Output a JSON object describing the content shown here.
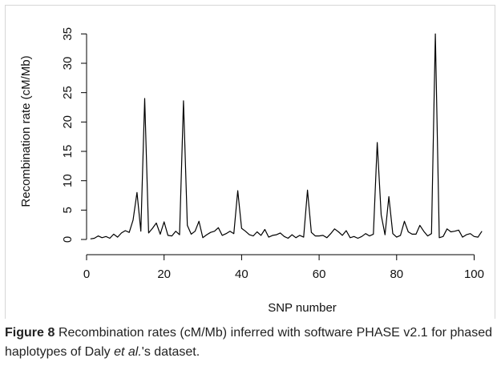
{
  "chart_data": {
    "type": "line",
    "xlabel": "SNP number",
    "ylabel": "Recombination rate (cM/Mb)",
    "xlim": [
      0,
      103
    ],
    "ylim": [
      0,
      36
    ],
    "xticks": [
      0,
      20,
      40,
      60,
      80,
      100
    ],
    "yticks": [
      0,
      5,
      10,
      15,
      20,
      25,
      30,
      35
    ],
    "grid": false,
    "series": [
      {
        "color": "#000000",
        "x": [
          1,
          2,
          3,
          4,
          5,
          6,
          7,
          8,
          9,
          10,
          11,
          12,
          13,
          14,
          15,
          16,
          17,
          18,
          19,
          20,
          21,
          22,
          23,
          24,
          25,
          26,
          27,
          28,
          29,
          30,
          31,
          32,
          33,
          34,
          35,
          36,
          37,
          38,
          39,
          40,
          41,
          42,
          43,
          44,
          45,
          46,
          47,
          48,
          49,
          50,
          51,
          52,
          53,
          54,
          55,
          56,
          57,
          58,
          59,
          60,
          61,
          62,
          63,
          64,
          65,
          66,
          67,
          68,
          69,
          70,
          71,
          72,
          73,
          74,
          75,
          76,
          77,
          78,
          79,
          80,
          81,
          82,
          83,
          84,
          85,
          86,
          87,
          88,
          89,
          90,
          91,
          92,
          93,
          94,
          95,
          96,
          97,
          98,
          99,
          100,
          101,
          102
        ],
        "y": [
          0.1,
          0.2,
          0.6,
          0.3,
          0.5,
          0.2,
          0.9,
          0.4,
          1.1,
          1.5,
          1.2,
          3.3,
          8.0,
          1.4,
          24.0,
          1.1,
          1.9,
          2.8,
          0.9,
          3.0,
          0.7,
          0.6,
          1.4,
          0.8,
          23.6,
          2.4,
          0.9,
          1.4,
          3.1,
          0.3,
          0.8,
          1.2,
          1.4,
          2.0,
          0.7,
          1.0,
          1.4,
          1.0,
          8.3,
          1.9,
          1.4,
          0.8,
          0.6,
          1.3,
          0.7,
          1.7,
          0.4,
          0.7,
          0.8,
          1.1,
          0.5,
          0.2,
          0.8,
          0.3,
          0.7,
          0.4,
          8.4,
          1.2,
          0.6,
          0.6,
          0.7,
          0.3,
          1.0,
          1.8,
          1.3,
          0.7,
          1.5,
          0.3,
          0.5,
          0.2,
          0.5,
          1.0,
          0.6,
          0.9,
          16.5,
          4.2,
          0.8,
          7.3,
          1.0,
          0.4,
          0.7,
          3.1,
          1.3,
          0.9,
          0.9,
          2.4,
          1.4,
          0.6,
          1.0,
          35.0,
          0.3,
          0.5,
          1.8,
          1.3,
          1.4,
          1.6,
          0.4,
          0.8,
          1.0,
          0.5,
          0.4,
          1.4
        ]
      }
    ]
  },
  "caption": {
    "label": "Figure 8",
    "text_part1": " Recombination rates (cM/Mb) inferred with software PHASE v2.1 for phased haplotypes of Daly ",
    "italic": "et al.",
    "text_part2": "'s dataset."
  }
}
